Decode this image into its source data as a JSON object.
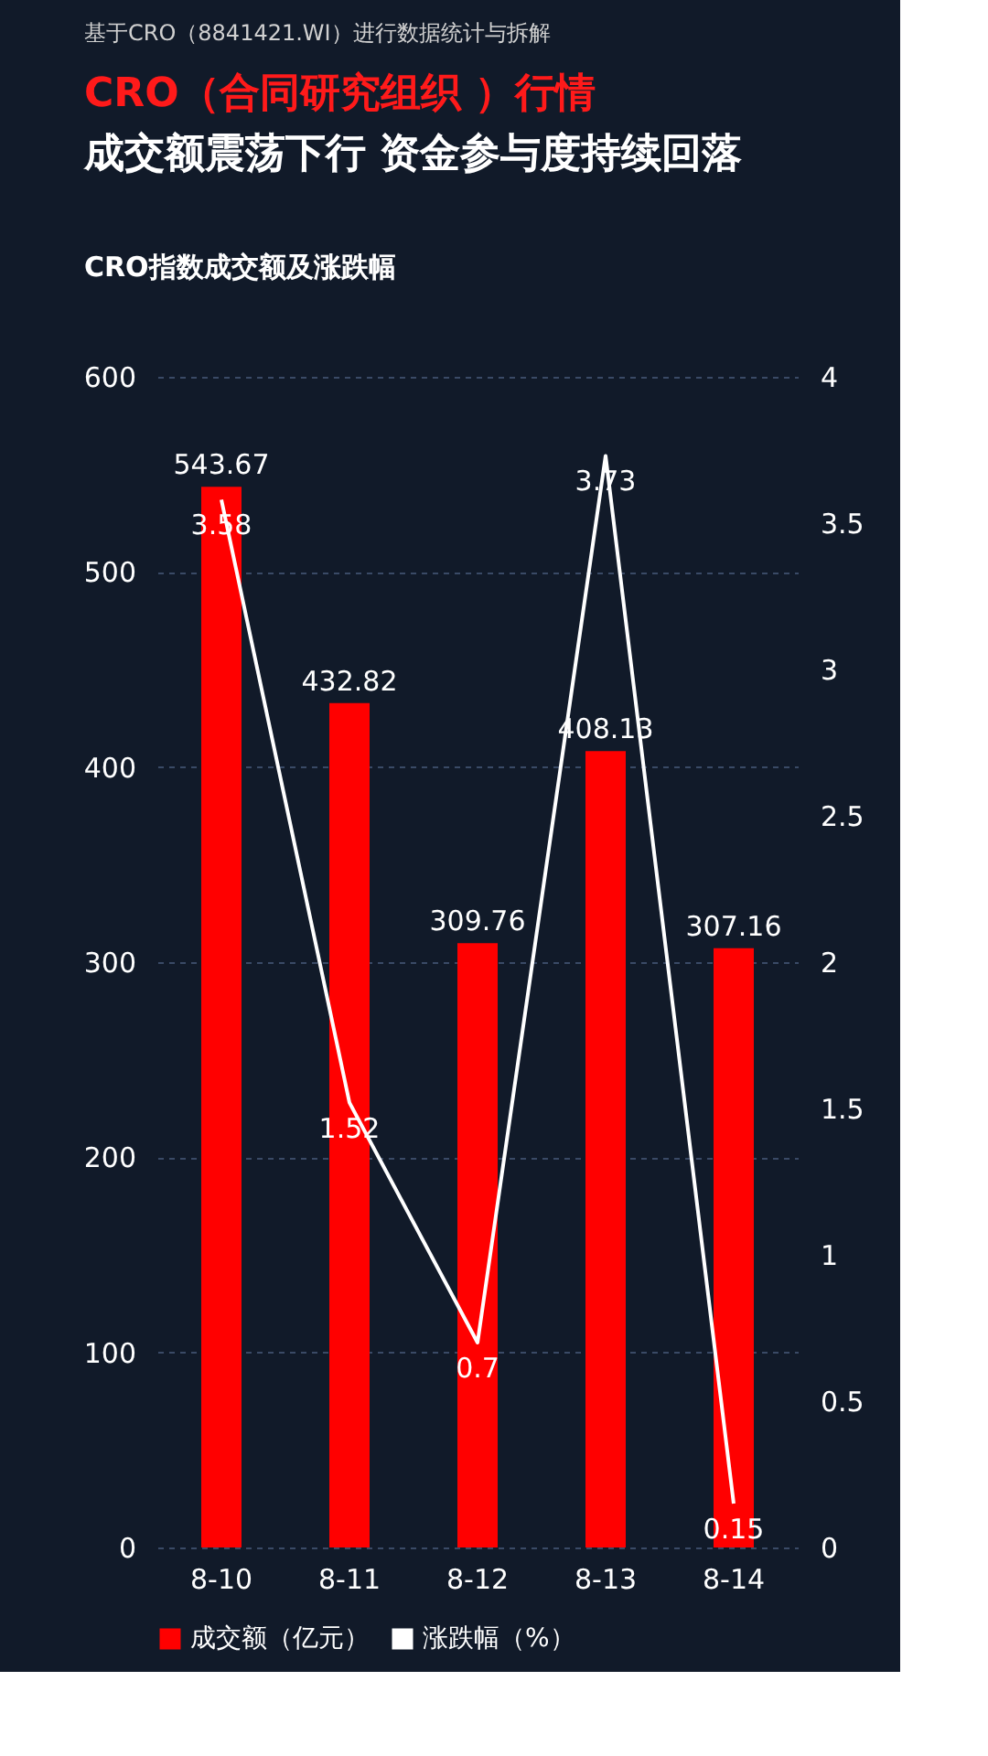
{
  "chart_data": {
    "type": "bar",
    "title": "CRO（合同研究组织 ）行情",
    "subtitle": "成交额震荡下行 资金参与度持续回落",
    "annotations": [
      "基于CRO（8841421.WI）进行数据统计与拆解",
      "CRO指数成交额及涨跌幅"
    ],
    "categories": [
      "8-10",
      "8-11",
      "8-12",
      "8-13",
      "8-14"
    ],
    "series": [
      {
        "name": "成交额（亿元）",
        "color": "#ff0000",
        "values": [
          543.67,
          432.82,
          309.76,
          408.13,
          307.16
        ]
      },
      {
        "name": "涨跌幅（%）",
        "type": "line",
        "axis": "y2",
        "color": "#ffffff",
        "values": [
          3.58,
          1.52,
          0.7,
          3.73,
          0.15
        ]
      }
    ],
    "ylim": [
      0,
      600
    ],
    "yticks": [
      0,
      100,
      200,
      300,
      400,
      500,
      600
    ],
    "y2lim": [
      0,
      4
    ],
    "y2ticks": [
      0,
      0.5,
      1,
      1.5,
      2,
      2.5,
      3,
      3.5,
      4
    ],
    "data_labels": true,
    "grid": "y",
    "legend": "bottom",
    "marker": "none",
    "line_style": "solid"
  }
}
